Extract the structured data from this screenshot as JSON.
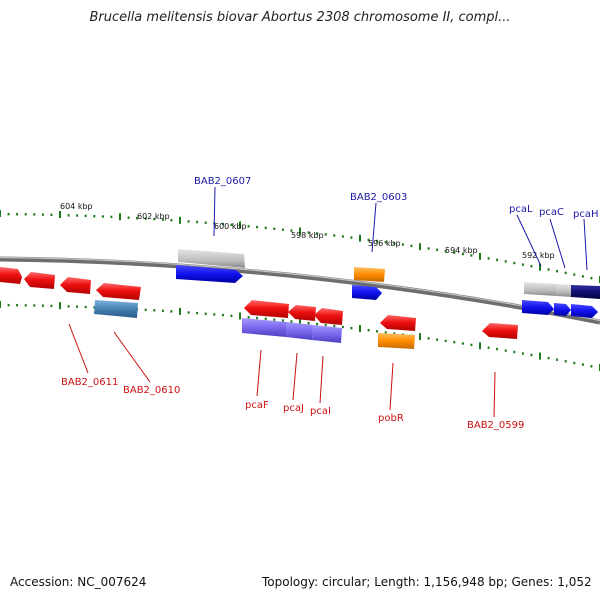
{
  "title": "Brucella melitensis biovar Abortus 2308 chromosome II, compl...",
  "footer": {
    "accession": "Accession: NC_007624",
    "summary": "Topology: circular; Length: 1,156,948 bp; Genes: 1,052"
  },
  "scale_labels": [
    "604 kbp",
    "602 kbp",
    "600 kbp",
    "598 kbp",
    "596 kbp",
    "594 kbp",
    "592 kbp"
  ],
  "forward_strand_labels": [
    "BAB2_0607",
    "BAB2_0603",
    "pcaL",
    "pcaC",
    "pcaH"
  ],
  "reverse_strand_labels": [
    "BAB2_0611",
    "BAB2_0610",
    "pcaF",
    "pcaJ",
    "pcaI",
    "pobR",
    "BAB2_0599"
  ],
  "colors": {
    "red": "#ee1111",
    "blue": "#1111ee",
    "gray": "#bbbbbb",
    "steelblue": "#4682b4",
    "purple": "#7b68ee",
    "orange": "#ff8c00",
    "navy": "#101070",
    "label_blue": "#1a1aa6",
    "label_red": "#cc1111",
    "tick_green": "#1d7a1d"
  }
}
